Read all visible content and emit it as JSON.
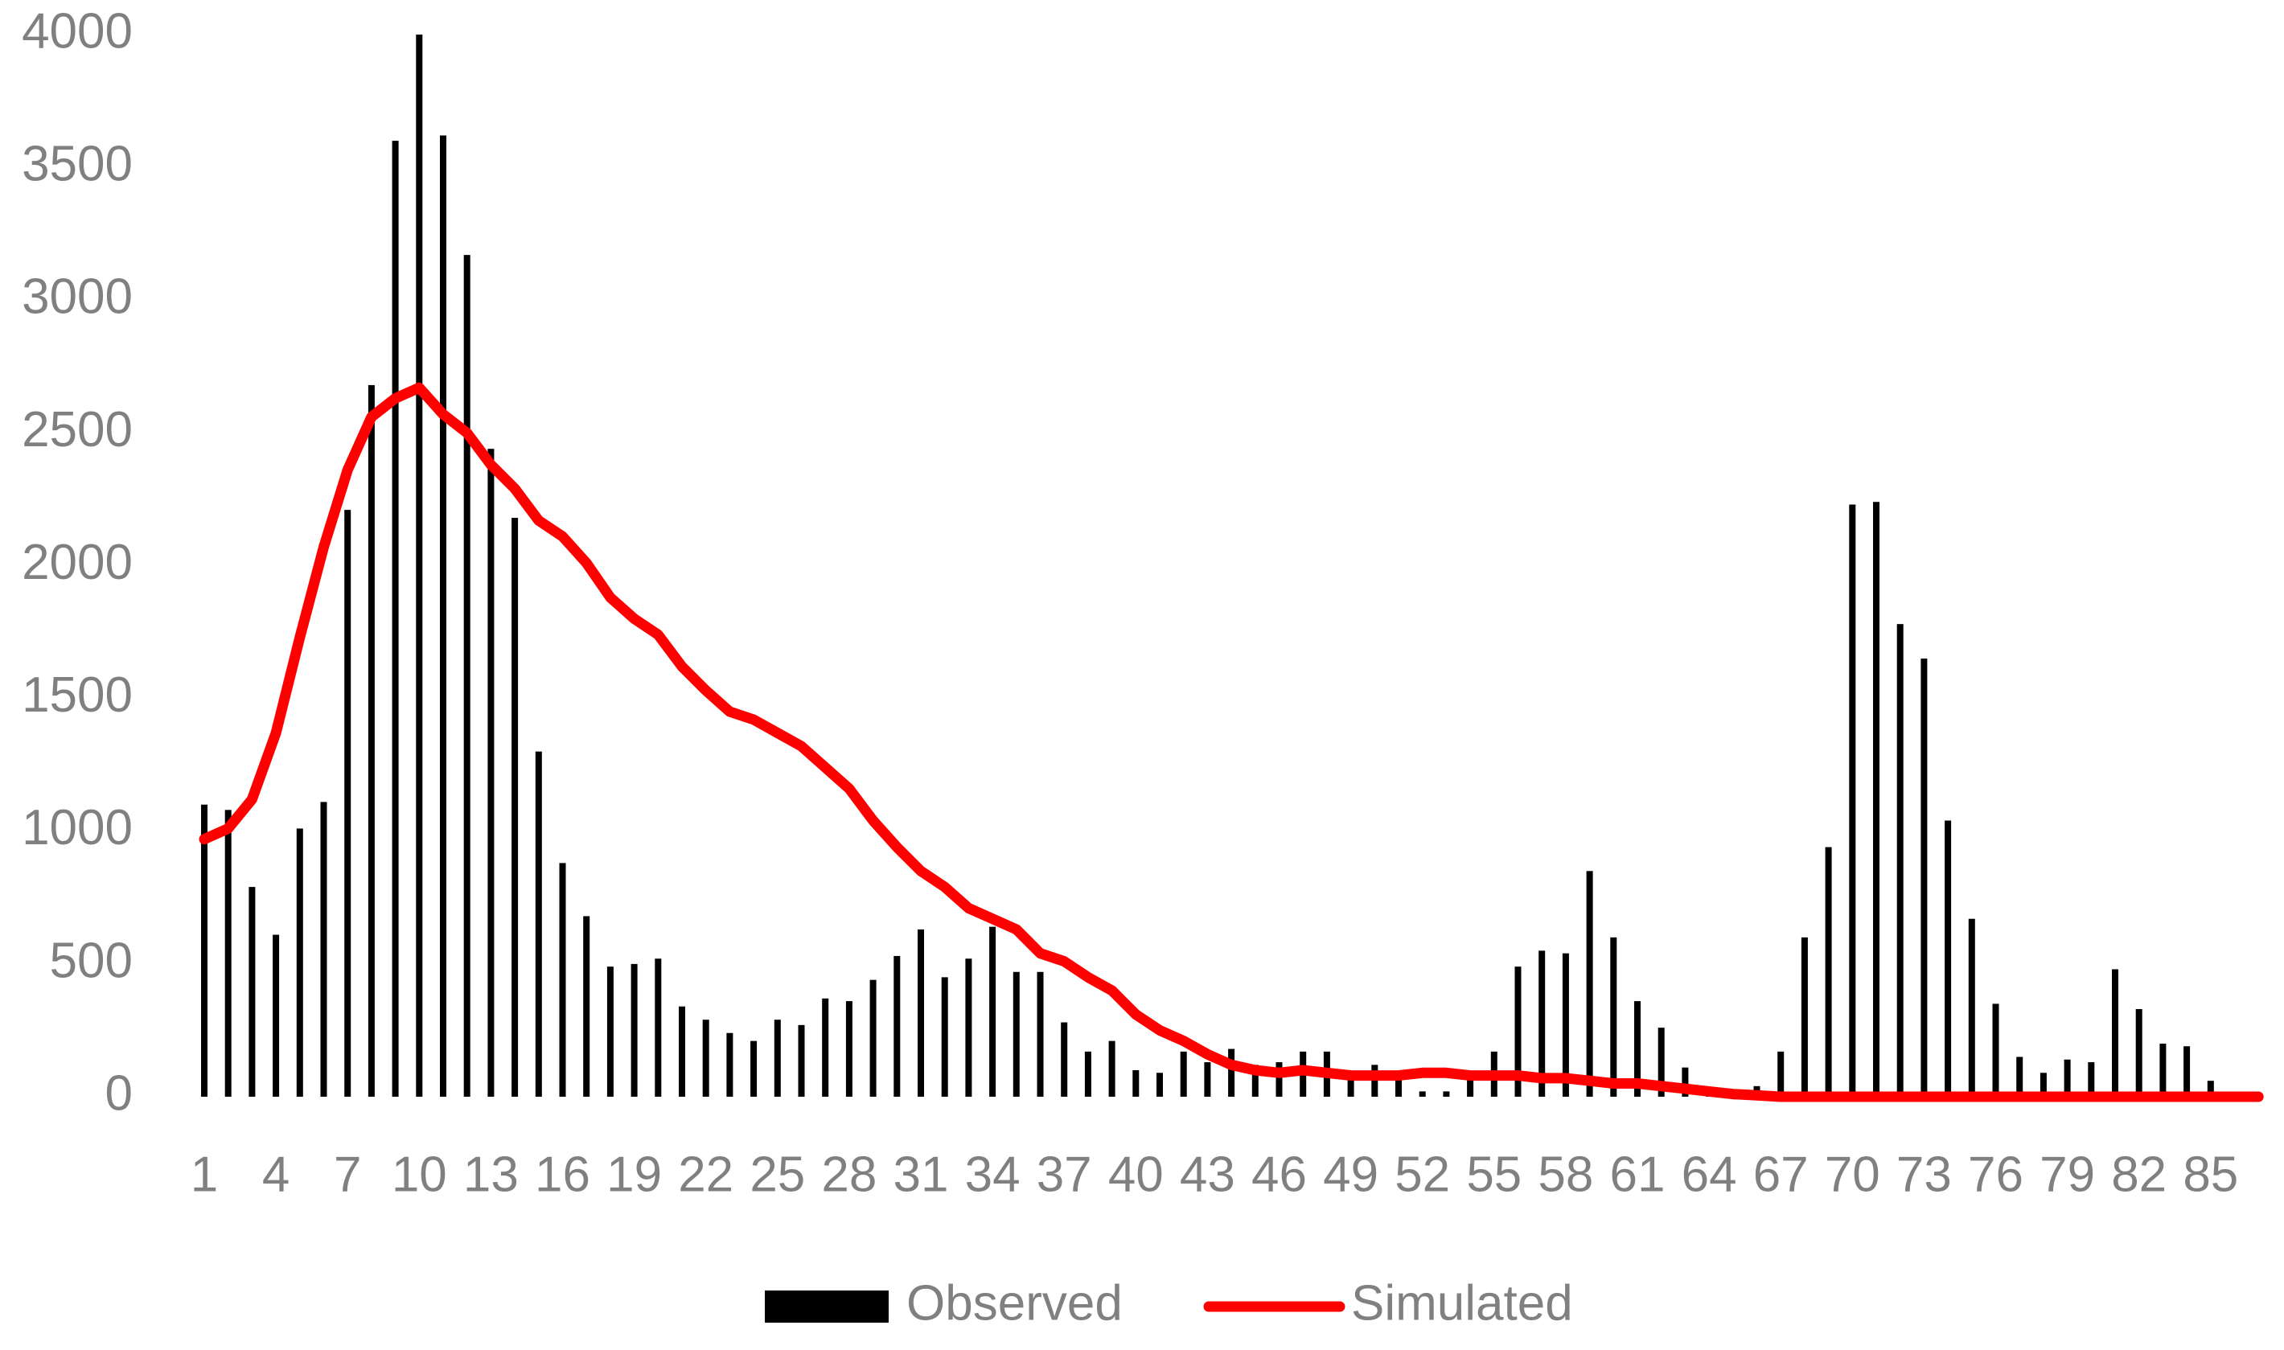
{
  "chart_data": {
    "type": "bar-line",
    "categories": [
      "1",
      null,
      null,
      "4",
      null,
      null,
      "7",
      null,
      null,
      "10",
      null,
      null,
      "13",
      null,
      null,
      "16",
      null,
      null,
      "19",
      null,
      null,
      "22",
      null,
      null,
      "25",
      null,
      null,
      "28",
      null,
      null,
      "31",
      null,
      null,
      "34",
      null,
      null,
      "37",
      null,
      null,
      "40",
      null,
      null,
      "43",
      null,
      null,
      "46",
      null,
      null,
      "49",
      null,
      null,
      "52",
      null,
      null,
      "55",
      null,
      null,
      "58",
      null,
      null,
      "61",
      null,
      null,
      "64",
      null,
      null,
      "67",
      null,
      null,
      "70",
      null,
      null,
      "73",
      null,
      null,
      "76",
      null,
      null,
      "79",
      null,
      null,
      "82",
      null,
      null,
      "85",
      null,
      null
    ],
    "series": [
      {
        "name": "Observed",
        "type": "bar",
        "color": "#000000",
        "values": [
          1100,
          1080,
          790,
          610,
          1010,
          1110,
          2210,
          2680,
          3600,
          4000,
          3620,
          3170,
          2440,
          2180,
          1300,
          880,
          680,
          490,
          500,
          520,
          340,
          290,
          240,
          210,
          290,
          270,
          370,
          360,
          440,
          530,
          630,
          450,
          520,
          640,
          470,
          470,
          280,
          170,
          210,
          100,
          90,
          170,
          130,
          180,
          120,
          130,
          170,
          170,
          90,
          120,
          90,
          20,
          20,
          70,
          170,
          490,
          550,
          540,
          850,
          600,
          360,
          260,
          110,
          10,
          5,
          40,
          170,
          600,
          940,
          2230,
          2240,
          1780,
          1650,
          1040,
          670,
          350,
          150,
          90,
          140,
          130,
          480,
          330,
          200,
          190,
          60,
          10,
          null
        ]
      },
      {
        "name": "Simulated",
        "type": "line",
        "color": "#ff0000",
        "values": [
          970,
          1010,
          1120,
          1370,
          1730,
          2070,
          2360,
          2560,
          2630,
          2670,
          2570,
          2500,
          2380,
          2290,
          2170,
          2110,
          2010,
          1880,
          1800,
          1740,
          1620,
          1530,
          1450,
          1420,
          1370,
          1320,
          1240,
          1160,
          1040,
          940,
          850,
          790,
          710,
          670,
          630,
          540,
          510,
          450,
          400,
          310,
          250,
          210,
          160,
          120,
          100,
          90,
          100,
          90,
          80,
          80,
          80,
          90,
          90,
          80,
          80,
          80,
          70,
          70,
          60,
          50,
          50,
          40,
          30,
          20,
          10,
          5,
          0,
          0,
          0,
          0,
          0,
          0,
          0,
          0,
          0,
          0,
          0,
          0,
          0,
          0,
          0,
          0,
          0,
          0,
          0,
          0,
          0
        ]
      }
    ],
    "ylim": [
      0,
      4000
    ],
    "yticks": [
      0,
      500,
      1000,
      1500,
      2000,
      2500,
      3000,
      3500,
      4000
    ],
    "legend": "bottom",
    "grid": false
  }
}
